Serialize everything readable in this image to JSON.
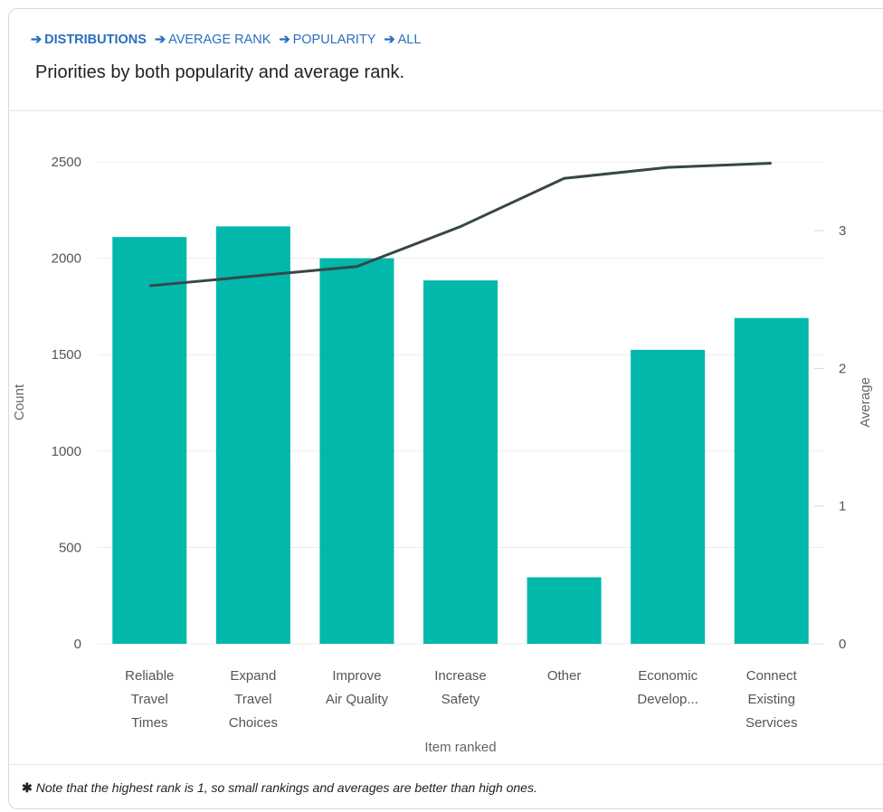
{
  "breadcrumb": [
    {
      "label": "DISTRIBUTIONS"
    },
    {
      "label": "AVERAGE RANK"
    },
    {
      "label": "POPULARITY"
    },
    {
      "label": "ALL"
    }
  ],
  "subtitle": "Priorities by both popularity and average rank.",
  "footnote": {
    "icon": "asterisk-icon",
    "text": "Note that the highest rank is 1, so small rankings and averages are better than high ones."
  },
  "chart_data": {
    "type": "bar",
    "xlabel": "Item ranked",
    "ylabel": "Count",
    "y2label": "Average",
    "ylim": [
      0,
      2500
    ],
    "y2lim": [
      0,
      3.5
    ],
    "yticks": [
      0,
      500,
      1000,
      1500,
      2000,
      2500
    ],
    "y2ticks": [
      0,
      1,
      2,
      3
    ],
    "grid": true,
    "categories": [
      [
        "Reliable",
        "Travel",
        "Times"
      ],
      [
        "Expand",
        "Travel",
        "Choices"
      ],
      [
        "Improve",
        "Air Quality"
      ],
      [
        "Increase",
        "Safety"
      ],
      [
        "Other"
      ],
      [
        "Economic",
        "Develop..."
      ],
      [
        "Connect",
        "Existing",
        "Services"
      ]
    ],
    "series": [
      {
        "type": "bar",
        "axis": "left",
        "color": "#01b8aa",
        "values": [
          2110,
          2165,
          2000,
          1885,
          345,
          1525,
          1690
        ]
      },
      {
        "type": "line",
        "axis": "right",
        "color": "#374649",
        "values": [
          2.6,
          2.67,
          2.74,
          3.03,
          3.38,
          3.46,
          3.49
        ]
      }
    ]
  }
}
